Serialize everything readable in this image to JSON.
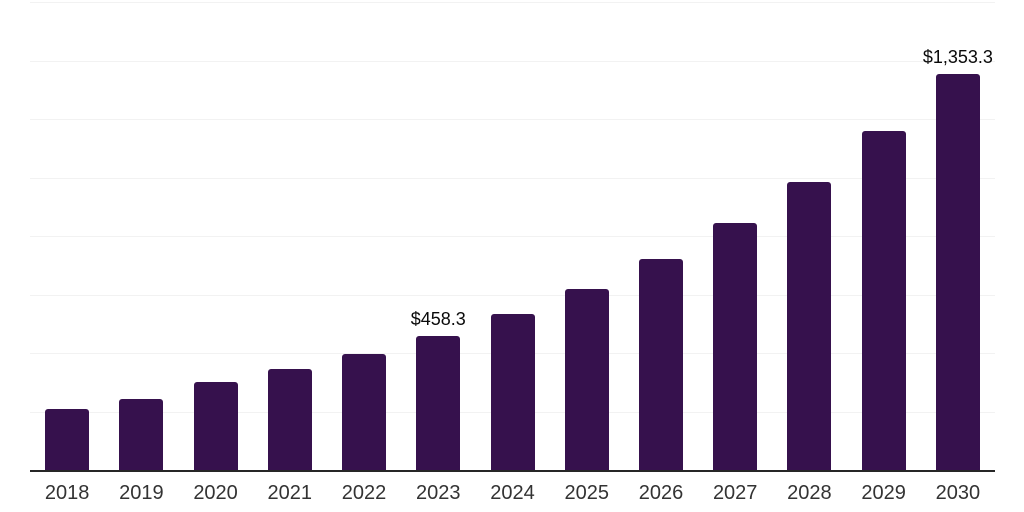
{
  "chart_data": {
    "type": "bar",
    "title": "",
    "xlabel": "",
    "ylabel": "",
    "categories": [
      "2018",
      "2019",
      "2020",
      "2021",
      "2022",
      "2023",
      "2024",
      "2025",
      "2026",
      "2027",
      "2028",
      "2029",
      "2030"
    ],
    "values": [
      210.0,
      242.0,
      300.5,
      344.0,
      398.0,
      458.3,
      535.0,
      620.0,
      722.0,
      845.0,
      986.0,
      1158.0,
      1353.3
    ],
    "data_labels": [
      "",
      "",
      "",
      "",
      "",
      "$458.3",
      "",
      "",
      "",
      "",
      "",
      "",
      "$1,353.3"
    ],
    "ylim": [
      0,
      1600
    ],
    "gridline_step": 200,
    "grid": "on",
    "legend": "none",
    "bar_color": "#36114d",
    "axis_line_color": "#262626",
    "gridline_color": "#f2f2f2",
    "label_color": "#0a0a0a",
    "tick_label_color": "#333333",
    "background": "#ffffff"
  }
}
